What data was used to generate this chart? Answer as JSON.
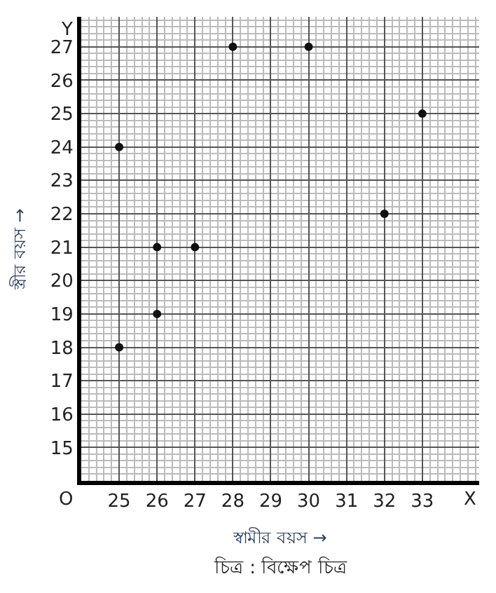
{
  "chart_data": {
    "type": "scatter",
    "x": [
      25,
      25,
      26,
      26,
      27,
      28,
      30,
      32,
      33
    ],
    "values": [
      24,
      18,
      21,
      19,
      21,
      27,
      27,
      22,
      25
    ],
    "color": "#111111",
    "marker": "circle",
    "xlabel": "স্বামীর বয়স →",
    "ylabel": "স্ত্রীর বয়স →",
    "xlim": [
      24,
      34.5
    ],
    "ylim": [
      14,
      27.9
    ],
    "xticks": [
      25,
      26,
      27,
      28,
      29,
      30,
      31,
      32,
      33
    ],
    "yticks": [
      15,
      16,
      17,
      18,
      19,
      20,
      21,
      22,
      23,
      24,
      25,
      26,
      27
    ],
    "grid": true,
    "annotations": [
      "O",
      "X",
      "Y",
      "চিত্র : বিক্ষেপ চিত্র"
    ]
  }
}
